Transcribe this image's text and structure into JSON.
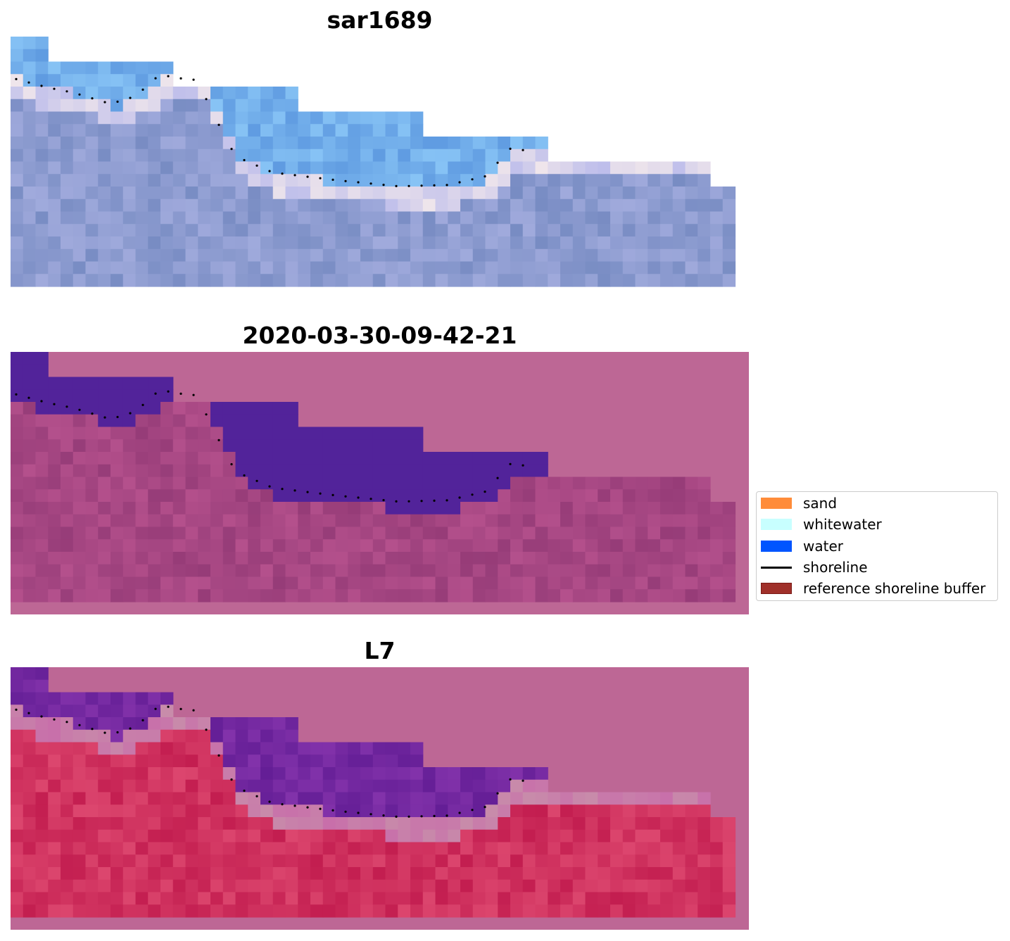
{
  "panels": [
    {
      "title": "sar1689",
      "image": "rgb-image"
    },
    {
      "title": "2020-03-30-09-42-21",
      "image": "classified-image"
    },
    {
      "title": "L7",
      "image": "false-color-image"
    }
  ],
  "legend": {
    "items": [
      {
        "label": "sand",
        "color": "#ff8c3a",
        "kind": "patch"
      },
      {
        "label": "whitewater",
        "color": "#c8ffff",
        "kind": "patch"
      },
      {
        "label": "water",
        "color": "#0055ff",
        "kind": "patch"
      },
      {
        "label": "shoreline",
        "color": "#000000",
        "kind": "line"
      },
      {
        "label": "reference shoreline buffer",
        "color": "#a0302a",
        "kind": "patch"
      }
    ]
  },
  "colors": {
    "background_pink": "#bd6795",
    "water_purple": "#52239a",
    "sar_blue": "#7aa2dc",
    "l7_red": "#c8285a",
    "shoreline_dots": "#000000"
  }
}
